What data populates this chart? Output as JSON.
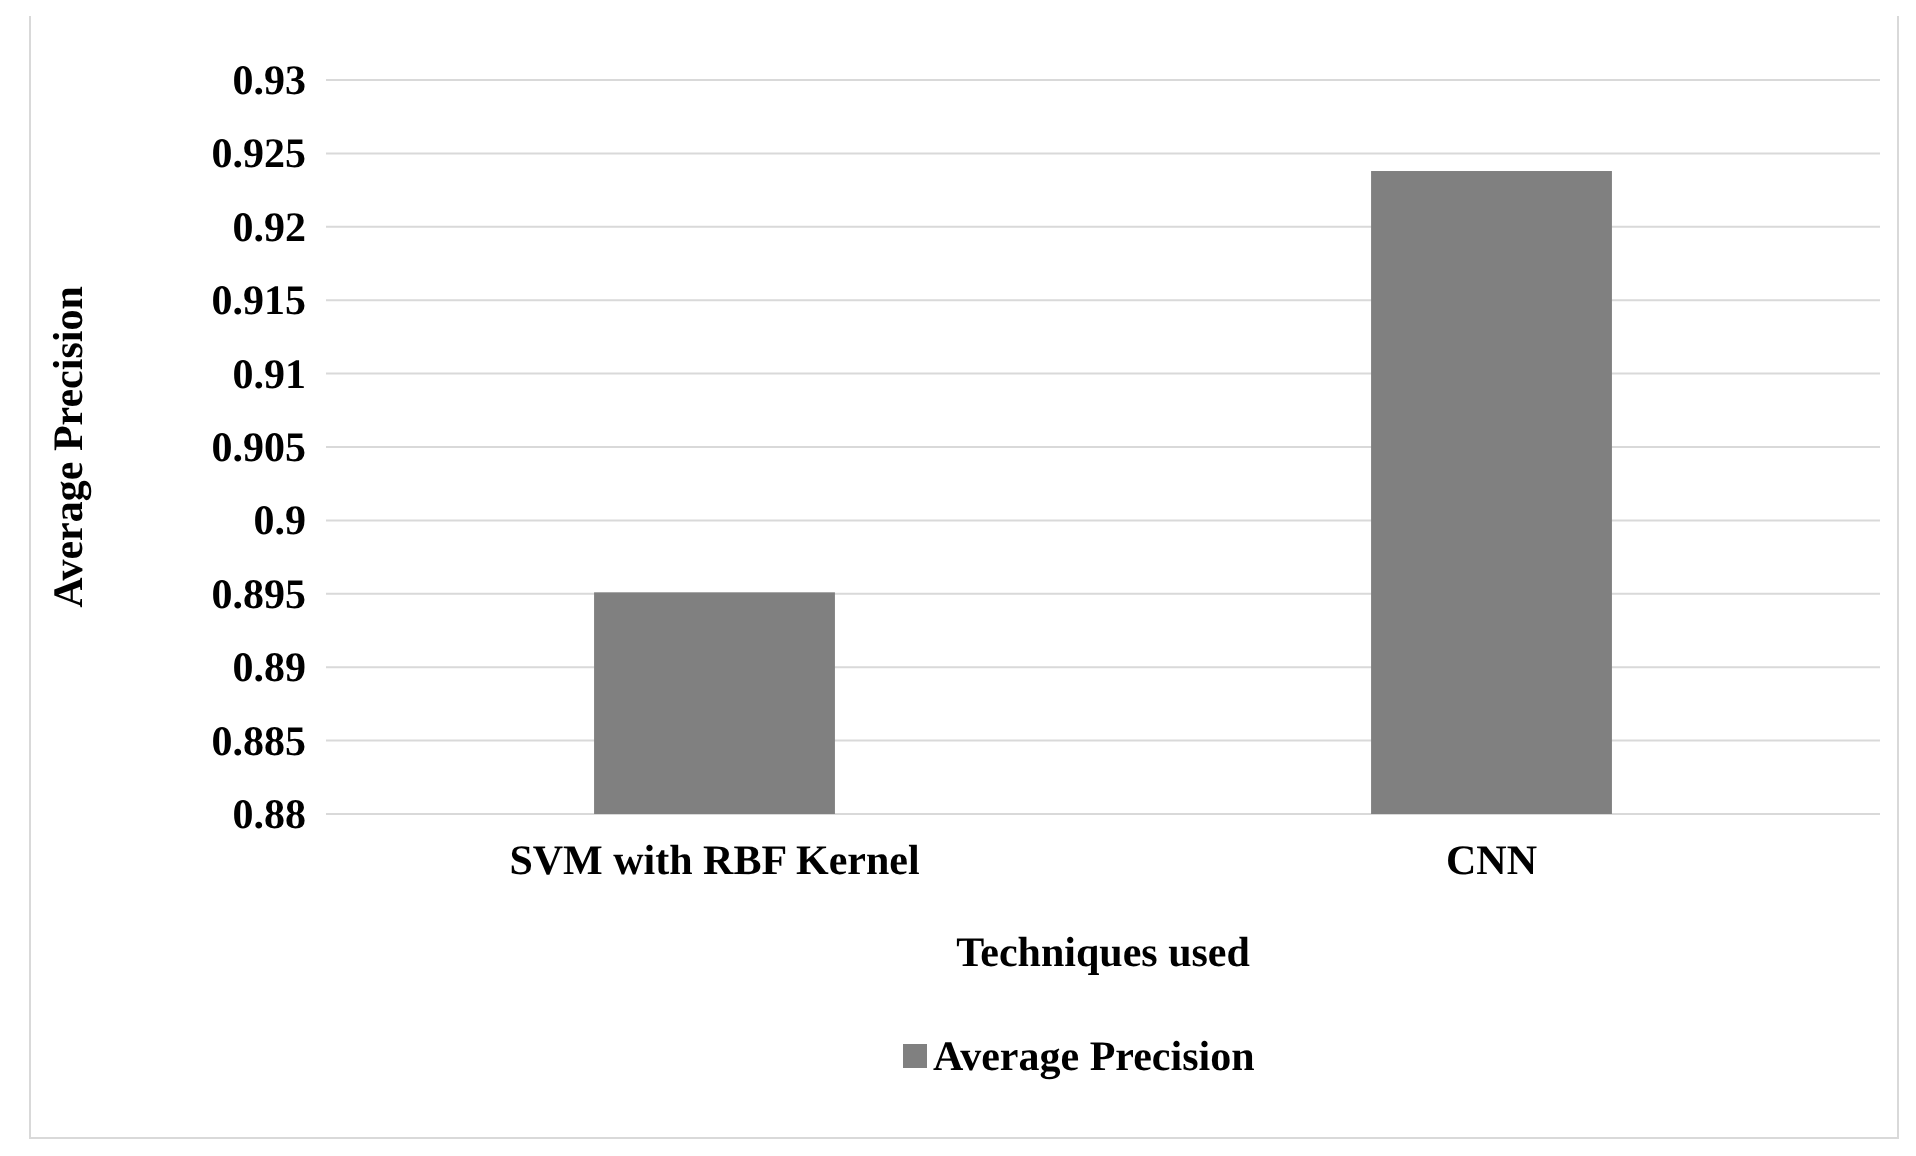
{
  "chart_data": {
    "type": "bar",
    "xlabel": "Techniques used",
    "ylabel": "Average Precision",
    "categories": [
      "SVM with RBF Kernel",
      "CNN"
    ],
    "series": [
      {
        "name": "Average Precision",
        "color": "#808080",
        "values": [
          0.8951,
          0.9238
        ]
      }
    ],
    "ylim": [
      0.88,
      0.93
    ],
    "yticks": [
      0.88,
      0.885,
      0.89,
      0.895,
      0.9,
      0.905,
      0.91,
      0.915,
      0.92,
      0.925,
      0.93
    ],
    "grid": "y",
    "legend": "bottom"
  }
}
